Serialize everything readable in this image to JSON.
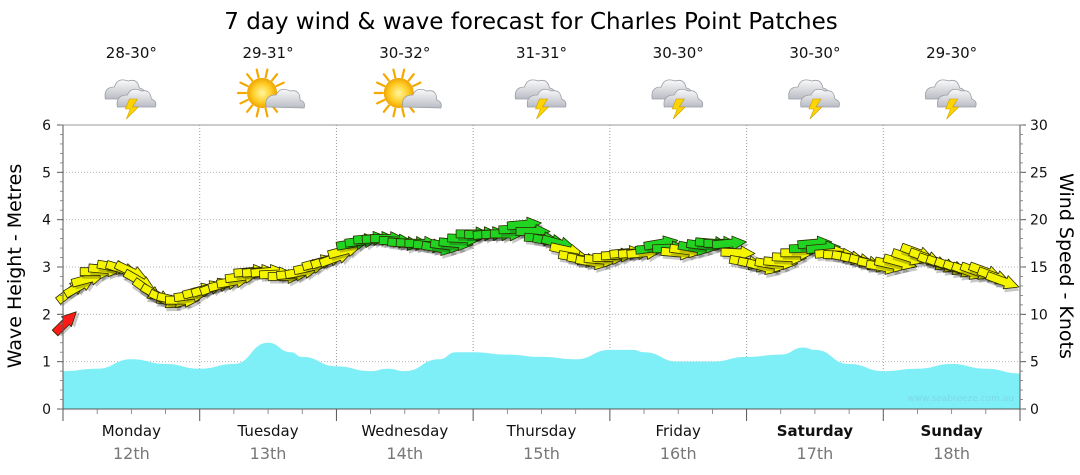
{
  "chart_data": {
    "type": "line",
    "title": "7 day wind & wave forecast for Charles Point Patches",
    "ylabel_left": "Wave Height - Metres",
    "ylabel_right": "Wind Speed - Knots",
    "ylim_left": [
      0,
      6
    ],
    "ylim_right": [
      0,
      30
    ],
    "yticks_left": [
      "0",
      "1",
      "2",
      "3",
      "4",
      "5",
      "6"
    ],
    "yticks_right": [
      "0",
      "5",
      "10",
      "15",
      "20",
      "25",
      "30"
    ],
    "grid": true,
    "watermark": "www.seabreeze.com.au",
    "days": [
      {
        "name": "Monday",
        "date": "12th",
        "temp": "28-30°",
        "icon": "storm-cloud-icon",
        "bold": false
      },
      {
        "name": "Tuesday",
        "date": "13th",
        "temp": "29-31°",
        "icon": "sun-cloud-icon",
        "bold": false
      },
      {
        "name": "Wednesday",
        "date": "14th",
        "temp": "30-32°",
        "icon": "sun-cloud-icon",
        "bold": false
      },
      {
        "name": "Thursday",
        "date": "15th",
        "temp": "31-31°",
        "icon": "storm-cloud-icon",
        "bold": false
      },
      {
        "name": "Friday",
        "date": "16th",
        "temp": "30-30°",
        "icon": "storm-cloud-icon",
        "bold": false
      },
      {
        "name": "Saturday",
        "date": "17th",
        "temp": "30-30°",
        "icon": "storm-cloud-icon",
        "bold": true
      },
      {
        "name": "Sunday",
        "date": "18th",
        "temp": "29-30°",
        "icon": "storm-cloud-icon",
        "bold": true
      }
    ],
    "series": [
      {
        "kind": "wave_height_m",
        "color": "#7eeef7",
        "x_hours": [
          0,
          6,
          12,
          18,
          24,
          30,
          36,
          40,
          42,
          48,
          54,
          57,
          60,
          66,
          69,
          72,
          78,
          84,
          90,
          96,
          100,
          102,
          108,
          114,
          120,
          126,
          130,
          132,
          138,
          144,
          150,
          156,
          162,
          168
        ],
        "values": [
          0.8,
          0.85,
          1.05,
          0.95,
          0.85,
          0.95,
          1.4,
          1.2,
          1.1,
          0.9,
          0.8,
          0.85,
          0.8,
          1.05,
          1.2,
          1.2,
          1.15,
          1.1,
          1.05,
          1.25,
          1.25,
          1.2,
          1.0,
          1.0,
          1.1,
          1.15,
          1.3,
          1.25,
          0.95,
          0.8,
          0.85,
          0.95,
          0.85,
          0.75
        ]
      },
      {
        "kind": "wind_speed_knots",
        "x_hours": [
          0,
          3,
          6,
          9,
          12,
          15,
          18,
          21,
          24,
          27,
          30,
          33,
          36,
          39,
          42,
          45,
          48,
          51,
          54,
          57,
          60,
          63,
          66,
          69,
          72,
          75,
          78,
          81,
          84,
          87,
          90,
          93,
          96,
          99,
          102,
          105,
          108,
          111,
          114,
          117,
          120,
          123,
          126,
          129,
          132,
          135,
          138,
          141,
          144,
          147,
          150,
          153,
          156,
          159,
          162,
          165,
          168
        ],
        "values": [
          12.0,
          13.0,
          14.5,
          15.0,
          14.5,
          12.5,
          11.5,
          11.5,
          12.5,
          13.0,
          13.5,
          14.5,
          14.5,
          14.0,
          14.5,
          15.5,
          16.0,
          17.5,
          18.0,
          18.0,
          17.5,
          17.5,
          17.0,
          17.5,
          18.5,
          18.5,
          18.5,
          19.5,
          18.0,
          17.5,
          16.0,
          15.5,
          16.0,
          16.5,
          16.5,
          17.5,
          16.5,
          17.0,
          17.5,
          17.5,
          15.5,
          15.0,
          15.5,
          16.5,
          17.5,
          16.5,
          16.0,
          15.5,
          15.0,
          15.5,
          16.5,
          15.5,
          15.0,
          14.5,
          14.5,
          13.5,
          13.0
        ],
        "direction_deg_cw_from_east": [
          -45,
          -30,
          0,
          10,
          25,
          35,
          25,
          0,
          -15,
          -20,
          -10,
          -5,
          -5,
          0,
          -10,
          -15,
          -20,
          -10,
          -5,
          0,
          5,
          0,
          10,
          5,
          0,
          -5,
          0,
          -5,
          5,
          15,
          10,
          10,
          0,
          -5,
          -5,
          -10,
          5,
          10,
          5,
          -5,
          10,
          15,
          5,
          0,
          -5,
          -5,
          10,
          15,
          10,
          15,
          20,
          20,
          20,
          20,
          20,
          20,
          20
        ],
        "colors": {
          "red": "#ff1a1a",
          "yellow": "#f5f500",
          "green": "#22d422"
        }
      }
    ]
  }
}
